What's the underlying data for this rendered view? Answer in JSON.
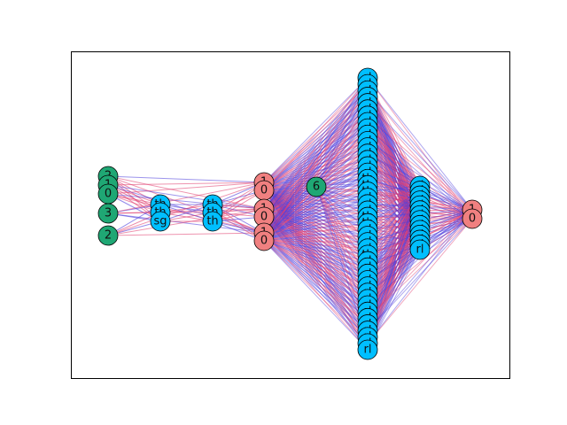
{
  "colors": {
    "input": "#1fa774",
    "op": "#00bfff",
    "bin": "#f08080",
    "edge_a": "#e03c6e",
    "edge_b": "#4b3cdc",
    "frame": "#000000"
  },
  "layers": [
    {
      "name": "inputs",
      "kind": "input",
      "nodes": [
        "2",
        "1",
        "0",
        "3",
        "2"
      ]
    },
    {
      "name": "ops-a",
      "kind": "op",
      "nodes": [
        "th",
        "th",
        "sg"
      ]
    },
    {
      "name": "ops-b",
      "kind": "op",
      "nodes": [
        "th",
        "th",
        "th"
      ]
    },
    {
      "name": "bins-a",
      "kind": "bin",
      "nodes": [
        "1",
        "0",
        "1",
        "0",
        "1",
        "0"
      ]
    },
    {
      "name": "const",
      "kind": "input",
      "nodes": [
        "6"
      ]
    },
    {
      "name": "ops-c",
      "kind": "op",
      "nodes": [
        "rl",
        "rl",
        "rl",
        "rl",
        "rl",
        "rl",
        "rl",
        "rl",
        "rl",
        "rl",
        "rl",
        "rl",
        "rl",
        "rl",
        "rl",
        "rl",
        "th",
        "th",
        "th",
        "rl",
        "rl",
        "rl",
        "th",
        "th",
        "rl",
        "rl",
        "rl",
        "rl",
        "th",
        "rl",
        "rl",
        "rl",
        "rl",
        "rl",
        "rl",
        "rl",
        "rl",
        "rl",
        "rl",
        "rl",
        "rl",
        "rl",
        "rl",
        "rl"
      ]
    },
    {
      "name": "ops-d",
      "kind": "op",
      "nodes": [
        "rl",
        "rl",
        "rl",
        "rl",
        "rl",
        "rl",
        "rl",
        "rl",
        "rl",
        "rl",
        "rl",
        "rl",
        "rl",
        "rl"
      ]
    },
    {
      "name": "output",
      "kind": "bin",
      "nodes": [
        "1",
        "0"
      ]
    }
  ]
}
